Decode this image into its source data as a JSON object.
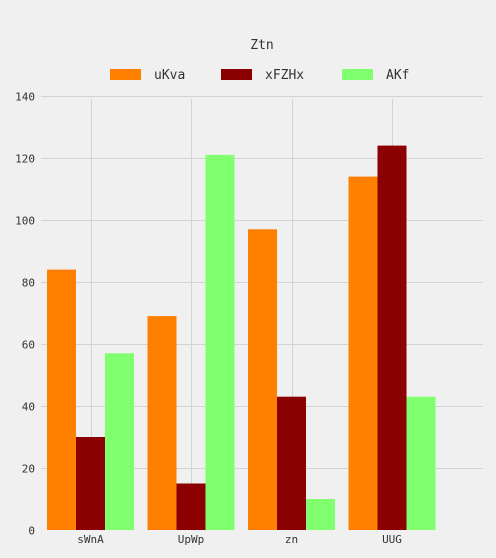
{
  "chart_data": {
    "type": "bar",
    "title": "Ztn",
    "xlabel": "",
    "ylabel": "",
    "categories": [
      "sWnA",
      "UpWp",
      "zn",
      "UUG"
    ],
    "series": [
      {
        "name": "uKva",
        "color": "#ff7f00",
        "values": [
          84,
          69,
          97,
          114
        ]
      },
      {
        "name": "xFZHx",
        "color": "#8b0000",
        "values": [
          30,
          15,
          43,
          124
        ]
      },
      {
        "name": "AKf",
        "color": "#80ff6f",
        "values": [
          57,
          121,
          10,
          43
        ]
      }
    ],
    "ylim": [
      0,
      140
    ],
    "yticks": [
      0,
      20,
      40,
      60,
      80,
      100,
      120,
      140
    ],
    "grid": true,
    "legend_position": "top"
  },
  "colors": {
    "background": "#f0f0f0",
    "grid": "#d3d3d3",
    "text": "#333333"
  }
}
